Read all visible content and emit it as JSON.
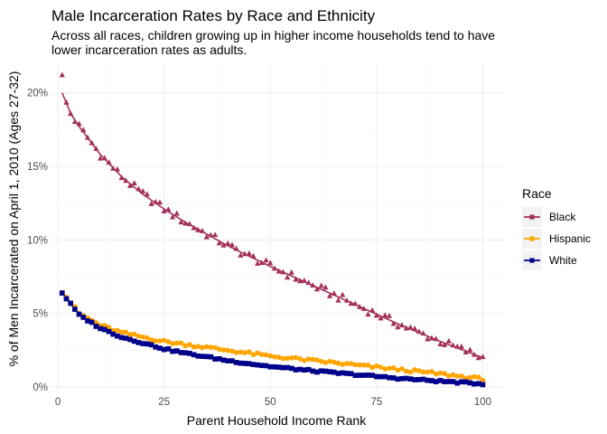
{
  "chart_data": {
    "type": "scatter",
    "title": "Male Incarceration Rates by Race and Ethnicity",
    "subtitle_lines": [
      "Across all races, children growing up in higher income households tend to have",
      "lower incarceration rates as adults."
    ],
    "xlabel": "Parent Household Income Rank",
    "ylabel": "% of Men Incarcerated on April 1, 2010 (Ages 27-32)",
    "xlim": [
      -1.5,
      105
    ],
    "ylim": [
      -0.3,
      22
    ],
    "x_ticks": [
      0,
      25,
      50,
      75,
      100
    ],
    "x_tick_labels": [
      "0",
      "25",
      "50",
      "75",
      "100"
    ],
    "y_ticks": [
      0,
      5,
      10,
      15,
      20
    ],
    "y_tick_labels": [
      "0%",
      "5%",
      "10%",
      "15%",
      "20%"
    ],
    "grid": true,
    "legend": {
      "title": "Race",
      "position": "right"
    },
    "series": [
      {
        "name": "Black",
        "color": "#A3305A",
        "marker": "triangle",
        "trend": "smooth",
        "anchors": [
          [
            1,
            20.0
          ],
          [
            3,
            18.6
          ],
          [
            5,
            17.7
          ],
          [
            10,
            15.8
          ],
          [
            15,
            14.3
          ],
          [
            20,
            13.1
          ],
          [
            25,
            12.1
          ],
          [
            30,
            11.2
          ],
          [
            40,
            9.6
          ],
          [
            50,
            8.2
          ],
          [
            60,
            6.9
          ],
          [
            70,
            5.6
          ],
          [
            80,
            4.3
          ],
          [
            90,
            3.1
          ],
          [
            100,
            2.0
          ]
        ]
      },
      {
        "name": "Hispanic",
        "color": "#FFA500",
        "marker": "circle",
        "trend": "smooth",
        "anchors": [
          [
            1,
            6.5
          ],
          [
            5,
            5.0
          ],
          [
            10,
            4.2
          ],
          [
            15,
            3.7
          ],
          [
            20,
            3.4
          ],
          [
            25,
            3.1
          ],
          [
            30,
            2.9
          ],
          [
            40,
            2.5
          ],
          [
            50,
            2.1
          ],
          [
            60,
            1.8
          ],
          [
            70,
            1.5
          ],
          [
            80,
            1.2
          ],
          [
            90,
            0.9
          ],
          [
            100,
            0.55
          ]
        ]
      },
      {
        "name": "White",
        "color": "#00008B",
        "marker": "square",
        "trend": "smooth",
        "anchors": [
          [
            1,
            6.4
          ],
          [
            5,
            4.9
          ],
          [
            10,
            4.0
          ],
          [
            15,
            3.4
          ],
          [
            20,
            3.0
          ],
          [
            25,
            2.6
          ],
          [
            30,
            2.3
          ],
          [
            40,
            1.8
          ],
          [
            50,
            1.4
          ],
          [
            60,
            1.1
          ],
          [
            70,
            0.85
          ],
          [
            80,
            0.6
          ],
          [
            90,
            0.4
          ],
          [
            100,
            0.22
          ]
        ]
      }
    ]
  }
}
